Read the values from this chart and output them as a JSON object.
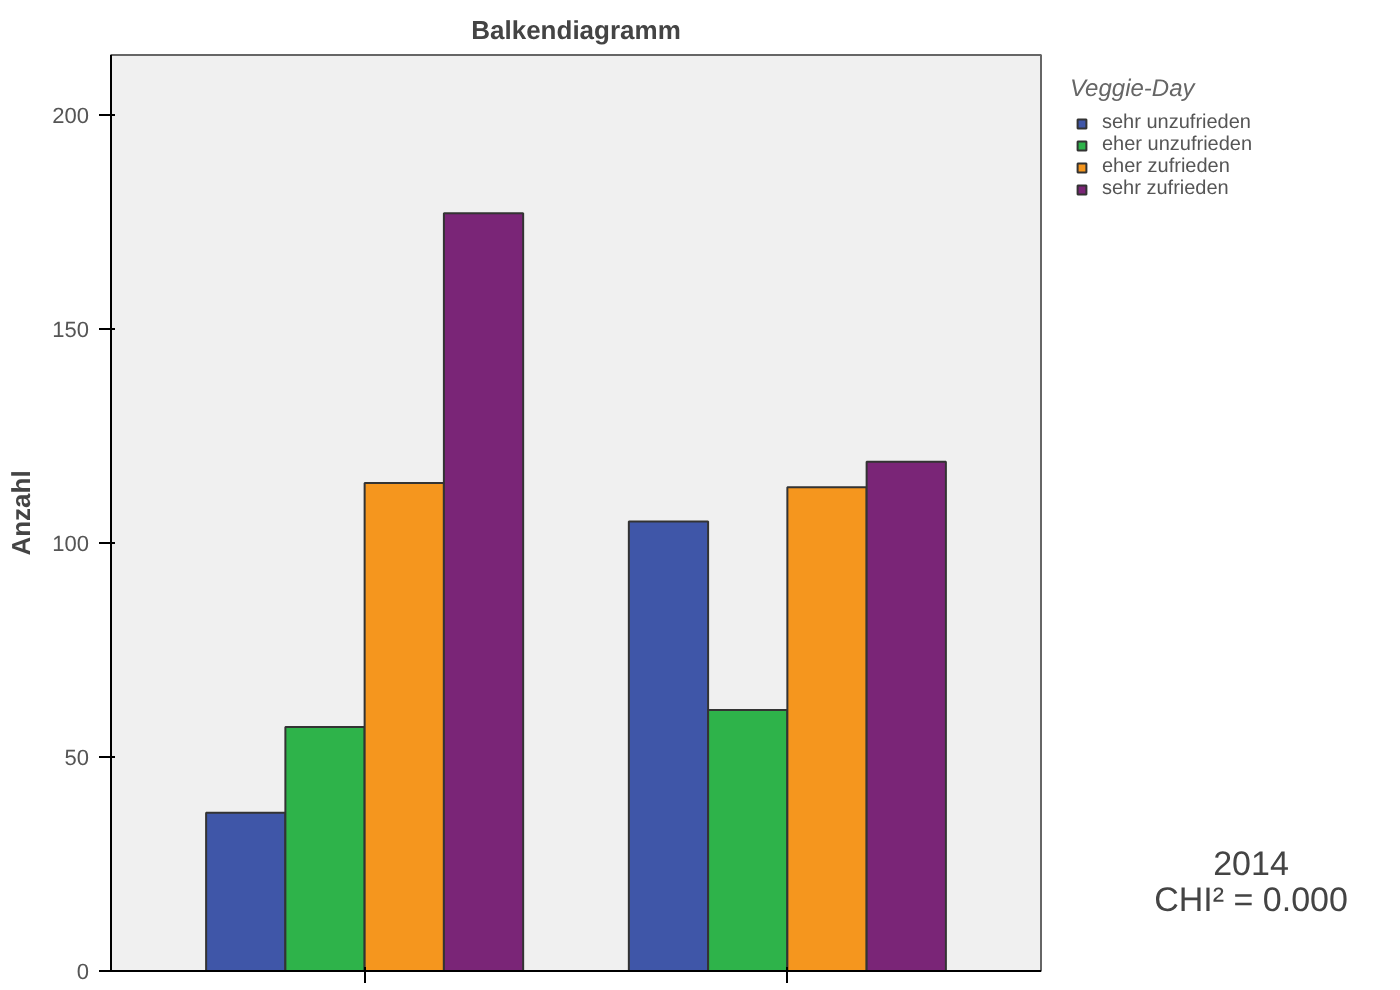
{
  "chart_data": {
    "type": "bar",
    "title": "Balkendiagramm",
    "ylabel": "Anzahl",
    "legend_title": "Veggie-Day",
    "categories": [
      null,
      null
    ],
    "series": [
      {
        "name": "sehr unzufrieden",
        "color": "#3f56a8",
        "values": [
          37,
          105
        ]
      },
      {
        "name": "eher unzufrieden",
        "color": "#2eb34a",
        "values": [
          57,
          61
        ]
      },
      {
        "name": "eher zufrieden",
        "color": "#f5961e",
        "values": [
          114,
          113
        ]
      },
      {
        "name": "sehr zufrieden",
        "color": "#7a2577",
        "values": [
          177,
          119
        ]
      }
    ],
    "ylim": [
      0,
      214
    ],
    "yticks": [
      0,
      50,
      100,
      150,
      200
    ],
    "grid": false,
    "legend": "top right",
    "annotations": [
      "2014",
      "CHI² = 0.000"
    ]
  }
}
